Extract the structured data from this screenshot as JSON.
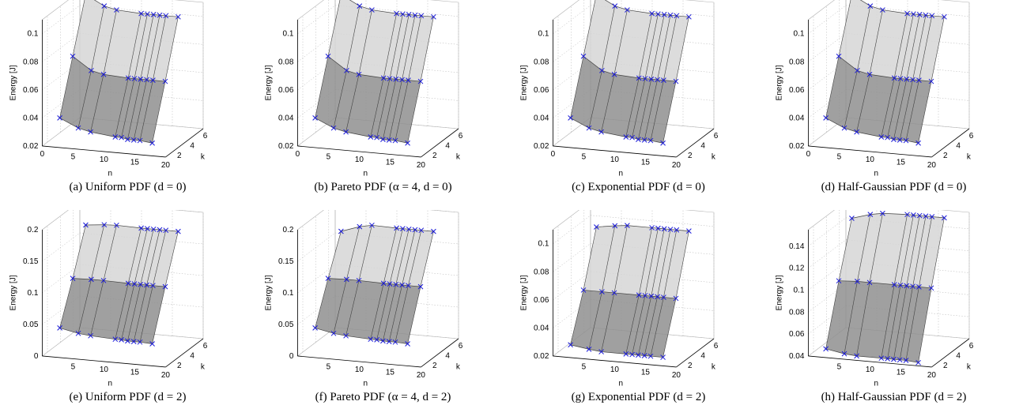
{
  "figure": {
    "surface_colors": {
      "top": "#d6d6d6",
      "bottom": "#8f8f8f",
      "edge": "#404040",
      "marker": "#1a1ad8",
      "grid": "#b4b4b4"
    },
    "view": "3d-surface, n axis front, k axis right, energy vertical"
  },
  "chart_data": [
    {
      "type": "surface3d",
      "caption": "(a) Uniform PDF (d = 0)",
      "xlabel": "n",
      "ylabel": "k",
      "zlabel": "Energy [J]",
      "xticks": [
        "0",
        "5",
        "10",
        "15",
        "20"
      ],
      "yticks": [
        "2",
        "4",
        "6"
      ],
      "zticks": [
        "0.02",
        "0.04",
        "0.06",
        "0.08",
        "0.1"
      ],
      "zlim": [
        0.02,
        0.11
      ],
      "n": [
        2,
        5,
        7,
        11,
        12,
        13,
        14,
        15,
        17
      ],
      "k": [
        2,
        4,
        6
      ],
      "series": [
        {
          "k": 2,
          "values": [
            0.038,
            0.032,
            0.03,
            0.028,
            0.028,
            0.027,
            0.027,
            0.027,
            0.026
          ]
        },
        {
          "k": 4,
          "values": [
            0.075,
            0.066,
            0.064,
            0.063,
            0.063,
            0.063,
            0.063,
            0.063,
            0.063
          ]
        },
        {
          "k": 6,
          "values": [
            0.112,
            0.105,
            0.103,
            0.102,
            0.102,
            0.102,
            0.102,
            0.102,
            0.102
          ]
        }
      ]
    },
    {
      "type": "surface3d",
      "caption": "(b) Pareto PDF (α = 4, d = 0)",
      "xlabel": "n",
      "ylabel": "k",
      "zlabel": "Energy [J]",
      "xticks": [
        "0",
        "5",
        "10",
        "15",
        "20"
      ],
      "yticks": [
        "2",
        "4",
        "6"
      ],
      "zticks": [
        "0.02",
        "0.04",
        "0.06",
        "0.08",
        "0.1"
      ],
      "zlim": [
        0.02,
        0.11
      ],
      "n": [
        2,
        5,
        7,
        11,
        12,
        13,
        14,
        15,
        17
      ],
      "k": [
        2,
        4,
        6
      ],
      "series": [
        {
          "k": 2,
          "values": [
            0.038,
            0.032,
            0.03,
            0.028,
            0.028,
            0.027,
            0.027,
            0.027,
            0.026
          ]
        },
        {
          "k": 4,
          "values": [
            0.075,
            0.066,
            0.064,
            0.063,
            0.063,
            0.063,
            0.063,
            0.063,
            0.063
          ]
        },
        {
          "k": 6,
          "values": [
            0.112,
            0.105,
            0.103,
            0.102,
            0.102,
            0.102,
            0.102,
            0.102,
            0.102
          ]
        }
      ]
    },
    {
      "type": "surface3d",
      "caption": "(c) Exponential PDF (d = 0)",
      "xlabel": "n",
      "ylabel": "k",
      "zlabel": "Energy [J]",
      "xticks": [
        "0",
        "5",
        "10",
        "15",
        "20"
      ],
      "yticks": [
        "2",
        "4",
        "6"
      ],
      "zticks": [
        "0.02",
        "0.04",
        "0.06",
        "0.08",
        "0.1"
      ],
      "zlim": [
        0.02,
        0.11
      ],
      "n": [
        2,
        5,
        7,
        11,
        12,
        13,
        14,
        15,
        17
      ],
      "k": [
        2,
        4,
        6
      ],
      "series": [
        {
          "k": 2,
          "values": [
            0.038,
            0.032,
            0.03,
            0.028,
            0.028,
            0.027,
            0.027,
            0.027,
            0.026
          ]
        },
        {
          "k": 4,
          "values": [
            0.075,
            0.066,
            0.064,
            0.063,
            0.063,
            0.063,
            0.063,
            0.063,
            0.063
          ]
        },
        {
          "k": 6,
          "values": [
            0.112,
            0.105,
            0.103,
            0.102,
            0.102,
            0.102,
            0.102,
            0.102,
            0.102
          ]
        }
      ]
    },
    {
      "type": "surface3d",
      "caption": "(d) Half-Gaussian PDF (d = 0)",
      "xlabel": "n",
      "ylabel": "k",
      "zlabel": "Energy [J]",
      "xticks": [
        "0",
        "5",
        "10",
        "15",
        "20"
      ],
      "yticks": [
        "2",
        "4",
        "6"
      ],
      "zticks": [
        "0.02",
        "0.04",
        "0.06",
        "0.08",
        "0.1"
      ],
      "zlim": [
        0.02,
        0.11
      ],
      "n": [
        2,
        5,
        7,
        11,
        12,
        13,
        14,
        15,
        17
      ],
      "k": [
        2,
        4,
        6
      ],
      "series": [
        {
          "k": 2,
          "values": [
            0.038,
            0.032,
            0.03,
            0.028,
            0.028,
            0.027,
            0.027,
            0.027,
            0.026
          ]
        },
        {
          "k": 4,
          "values": [
            0.075,
            0.066,
            0.064,
            0.063,
            0.063,
            0.063,
            0.063,
            0.063,
            0.063
          ]
        },
        {
          "k": 6,
          "values": [
            0.112,
            0.105,
            0.103,
            0.102,
            0.102,
            0.102,
            0.102,
            0.102,
            0.102
          ]
        }
      ]
    },
    {
      "type": "surface3d",
      "caption": "(e) Uniform PDF (d = 2)",
      "xlabel": "n",
      "ylabel": "k",
      "zlabel": "Energy [J]",
      "xticks": [
        "5",
        "10",
        "15",
        "20"
      ],
      "yticks": [
        "2",
        "4",
        "6"
      ],
      "zticks": [
        "0",
        "0.05",
        "0.1",
        "0.15",
        "0.2"
      ],
      "zlim": [
        0,
        0.2
      ],
      "n": [
        2,
        5,
        7,
        11,
        12,
        13,
        14,
        15,
        17
      ],
      "k": [
        2,
        4,
        6
      ],
      "series": [
        {
          "k": 2,
          "values": [
            0.04,
            0.034,
            0.032,
            0.03,
            0.03,
            0.029,
            0.029,
            0.029,
            0.028
          ]
        },
        {
          "k": 4,
          "values": [
            0.103,
            0.104,
            0.104,
            0.103,
            0.103,
            0.103,
            0.103,
            0.103,
            0.103
          ]
        },
        {
          "k": 6,
          "values": [
            0.172,
            0.175,
            0.176,
            0.175,
            0.175,
            0.175,
            0.175,
            0.175,
            0.175
          ]
        }
      ]
    },
    {
      "type": "surface3d",
      "caption": "(f) Pareto PDF (α = 4, d = 2)",
      "xlabel": "n",
      "ylabel": "k",
      "zlabel": "Energy [J]",
      "xticks": [
        "5",
        "10",
        "15",
        "20"
      ],
      "yticks": [
        "2",
        "4",
        "6"
      ],
      "zticks": [
        "0",
        "0.05",
        "0.1",
        "0.15",
        "0.2"
      ],
      "zlim": [
        0,
        0.2
      ],
      "n": [
        2,
        5,
        7,
        11,
        12,
        13,
        14,
        15,
        17
      ],
      "k": [
        2,
        4,
        6
      ],
      "series": [
        {
          "k": 2,
          "values": [
            0.04,
            0.034,
            0.032,
            0.03,
            0.03,
            0.029,
            0.029,
            0.029,
            0.028
          ]
        },
        {
          "k": 4,
          "values": [
            0.103,
            0.104,
            0.104,
            0.103,
            0.103,
            0.103,
            0.103,
            0.103,
            0.103
          ]
        },
        {
          "k": 6,
          "values": [
            0.162,
            0.172,
            0.176,
            0.175,
            0.175,
            0.175,
            0.175,
            0.175,
            0.175
          ]
        }
      ]
    },
    {
      "type": "surface3d",
      "caption": "(g) Exponential PDF (d = 2)",
      "xlabel": "n",
      "ylabel": "k",
      "zlabel": "Energy [J]",
      "xticks": [
        "5",
        "10",
        "15",
        "20"
      ],
      "yticks": [
        "2",
        "4",
        "6"
      ],
      "zticks": [
        "0.02",
        "0.04",
        "0.06",
        "0.08",
        "0.1"
      ],
      "zlim": [
        0.02,
        0.11
      ],
      "n": [
        2,
        5,
        7,
        11,
        12,
        13,
        14,
        15,
        17
      ],
      "k": [
        2,
        4,
        6
      ],
      "series": [
        {
          "k": 2,
          "values": [
            0.026,
            0.024,
            0.023,
            0.023,
            0.023,
            0.023,
            0.023,
            0.023,
            0.023
          ]
        },
        {
          "k": 4,
          "values": [
            0.058,
            0.058,
            0.058,
            0.058,
            0.058,
            0.058,
            0.058,
            0.058,
            0.058
          ]
        },
        {
          "k": 6,
          "values": [
            0.096,
            0.098,
            0.099,
            0.099,
            0.099,
            0.099,
            0.099,
            0.099,
            0.099
          ]
        }
      ]
    },
    {
      "type": "surface3d",
      "caption": "(h) Half-Gaussian PDF (d = 2)",
      "xlabel": "n",
      "ylabel": "k",
      "zlabel": "Energy [J]",
      "xticks": [
        "5",
        "10",
        "15",
        "20"
      ],
      "yticks": [
        "2",
        "4",
        "6"
      ],
      "zticks": [
        "0.04",
        "0.06",
        "0.08",
        "0.1",
        "0.12",
        "0.14"
      ],
      "zlim": [
        0.04,
        0.155
      ],
      "n": [
        2,
        5,
        7,
        11,
        12,
        13,
        14,
        15,
        17
      ],
      "k": [
        2,
        4,
        6
      ],
      "series": [
        {
          "k": 2,
          "values": [
            0.044,
            0.041,
            0.04,
            0.04,
            0.04,
            0.04,
            0.04,
            0.04,
            0.039
          ]
        },
        {
          "k": 4,
          "values": [
            0.097,
            0.098,
            0.098,
            0.098,
            0.098,
            0.098,
            0.098,
            0.098,
            0.098
          ]
        },
        {
          "k": 6,
          "values": [
            0.145,
            0.15,
            0.152,
            0.153,
            0.153,
            0.153,
            0.153,
            0.153,
            0.153
          ]
        }
      ]
    }
  ]
}
